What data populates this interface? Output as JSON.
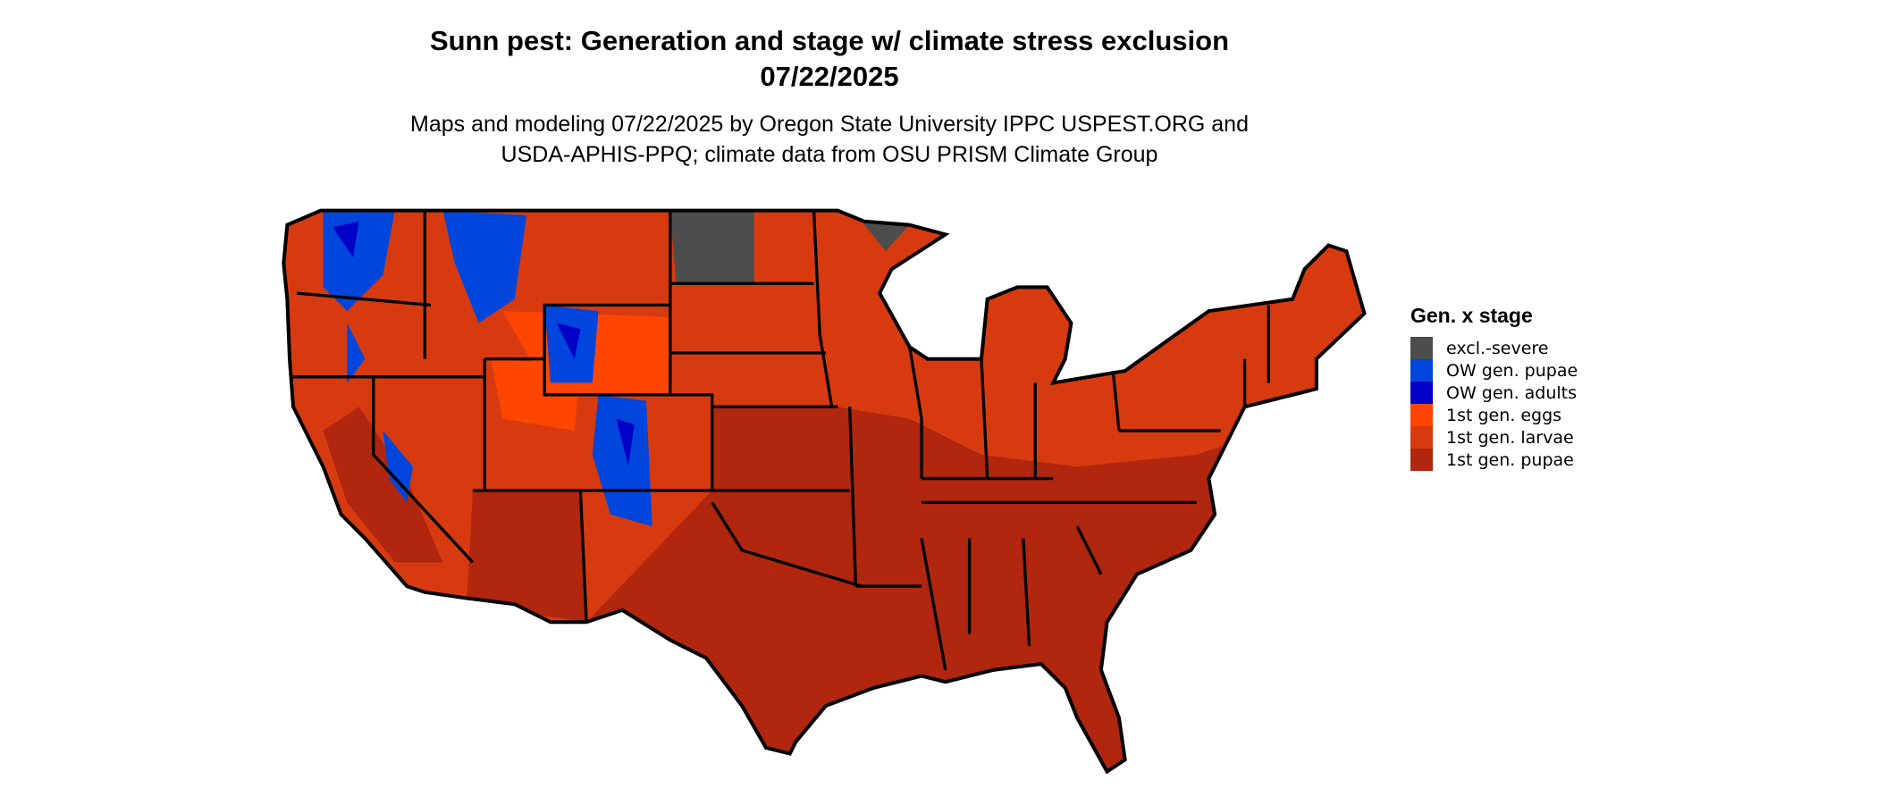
{
  "header": {
    "title_line1": "Sunn pest: Generation and stage w/ climate stress exclusion",
    "title_line2": "07/22/2025",
    "subtitle_line1": "Maps and modeling 07/22/2025 by Oregon State University IPPC USPEST.ORG and",
    "subtitle_line2": "USDA-APHIS-PPQ; climate data from OSU PRISM Climate Group"
  },
  "legend": {
    "title": "Gen. x stage",
    "items": [
      {
        "label": "excl.-severe",
        "color": "#4d4d4d"
      },
      {
        "label": "OW gen. pupae",
        "color": "#0046dc"
      },
      {
        "label": "OW gen. adults",
        "color": "#0000c8"
      },
      {
        "label": "1st gen. eggs",
        "color": "#ff4500"
      },
      {
        "label": "1st gen. larvae",
        "color": "#d83a10"
      },
      {
        "label": "1st gen. pupae",
        "color": "#b0260f"
      }
    ]
  }
}
